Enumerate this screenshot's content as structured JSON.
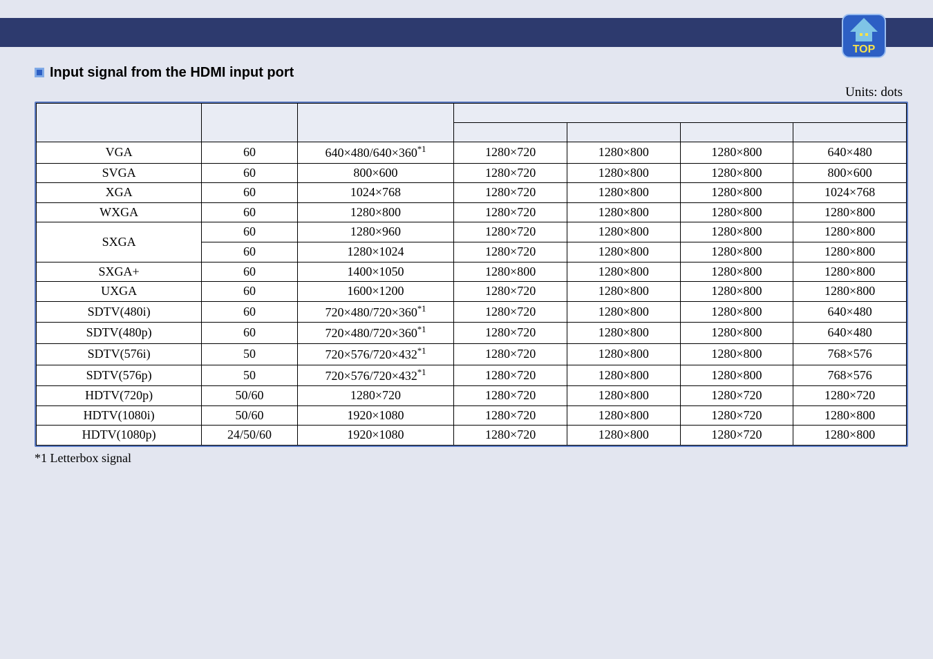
{
  "page": {
    "background_color": "#e3e6f0",
    "stripe_color": "#2d3a6e"
  },
  "section": {
    "title": "Input signal from the HDMI input port",
    "units_label": "Units: dots",
    "footnote": "*1 Letterbox signal"
  },
  "table": {
    "columns_count": 7,
    "header_rows": 2,
    "rows": [
      {
        "signal": "VGA",
        "refresh": "60",
        "res": "640×480/640×360",
        "sup": "*1",
        "c4": "1280×720",
        "c5": "1280×800",
        "c6": "1280×800",
        "c7": "640×480",
        "rowspan": 1
      },
      {
        "signal": "SVGA",
        "refresh": "60",
        "res": "800×600",
        "sup": "",
        "c4": "1280×720",
        "c5": "1280×800",
        "c6": "1280×800",
        "c7": "800×600",
        "rowspan": 1
      },
      {
        "signal": "XGA",
        "refresh": "60",
        "res": "1024×768",
        "sup": "",
        "c4": "1280×720",
        "c5": "1280×800",
        "c6": "1280×800",
        "c7": "1024×768",
        "rowspan": 1
      },
      {
        "signal": "WXGA",
        "refresh": "60",
        "res": "1280×800",
        "sup": "",
        "c4": "1280×720",
        "c5": "1280×800",
        "c6": "1280×800",
        "c7": "1280×800",
        "rowspan": 1
      },
      {
        "signal": "SXGA",
        "refresh": "60",
        "res": "1280×960",
        "sup": "",
        "c4": "1280×720",
        "c5": "1280×800",
        "c6": "1280×800",
        "c7": "1280×800",
        "rowspan": 2
      },
      {
        "signal": "",
        "refresh": "60",
        "res": "1280×1024",
        "sup": "",
        "c4": "1280×720",
        "c5": "1280×800",
        "c6": "1280×800",
        "c7": "1280×800",
        "rowspan": 0
      },
      {
        "signal": "SXGA+",
        "refresh": "60",
        "res": "1400×1050",
        "sup": "",
        "c4": "1280×800",
        "c5": "1280×800",
        "c6": "1280×800",
        "c7": "1280×800",
        "rowspan": 1
      },
      {
        "signal": "UXGA",
        "refresh": "60",
        "res": "1600×1200",
        "sup": "",
        "c4": "1280×720",
        "c5": "1280×800",
        "c6": "1280×800",
        "c7": "1280×800",
        "rowspan": 1
      },
      {
        "signal": "SDTV(480i)",
        "refresh": "60",
        "res": "720×480/720×360",
        "sup": "*1",
        "c4": "1280×720",
        "c5": "1280×800",
        "c6": "1280×800",
        "c7": "640×480",
        "rowspan": 1
      },
      {
        "signal": "SDTV(480p)",
        "refresh": "60",
        "res": "720×480/720×360",
        "sup": "*1",
        "c4": "1280×720",
        "c5": "1280×800",
        "c6": "1280×800",
        "c7": "640×480",
        "rowspan": 1
      },
      {
        "signal": "SDTV(576i)",
        "refresh": "50",
        "res": "720×576/720×432",
        "sup": "*1",
        "c4": "1280×720",
        "c5": "1280×800",
        "c6": "1280×800",
        "c7": "768×576",
        "rowspan": 1
      },
      {
        "signal": "SDTV(576p)",
        "refresh": "50",
        "res": "720×576/720×432",
        "sup": "*1",
        "c4": "1280×720",
        "c5": "1280×800",
        "c6": "1280×800",
        "c7": "768×576",
        "rowspan": 1
      },
      {
        "signal": "HDTV(720p)",
        "refresh": "50/60",
        "res": "1280×720",
        "sup": "",
        "c4": "1280×720",
        "c5": "1280×800",
        "c6": "1280×720",
        "c7": "1280×720",
        "rowspan": 1
      },
      {
        "signal": "HDTV(1080i)",
        "refresh": "50/60",
        "res": "1920×1080",
        "sup": "",
        "c4": "1280×720",
        "c5": "1280×800",
        "c6": "1280×720",
        "c7": "1280×800",
        "rowspan": 1
      },
      {
        "signal": "HDTV(1080p)",
        "refresh": "24/50/60",
        "res": "1920×1080",
        "sup": "",
        "c4": "1280×720",
        "c5": "1280×800",
        "c6": "1280×720",
        "c7": "1280×800",
        "rowspan": 1
      }
    ]
  },
  "logo": {
    "label": "TOP",
    "bg_color": "#2d5fc4",
    "text_color": "#f7e24a",
    "accent_color": "#7fc4e6"
  }
}
